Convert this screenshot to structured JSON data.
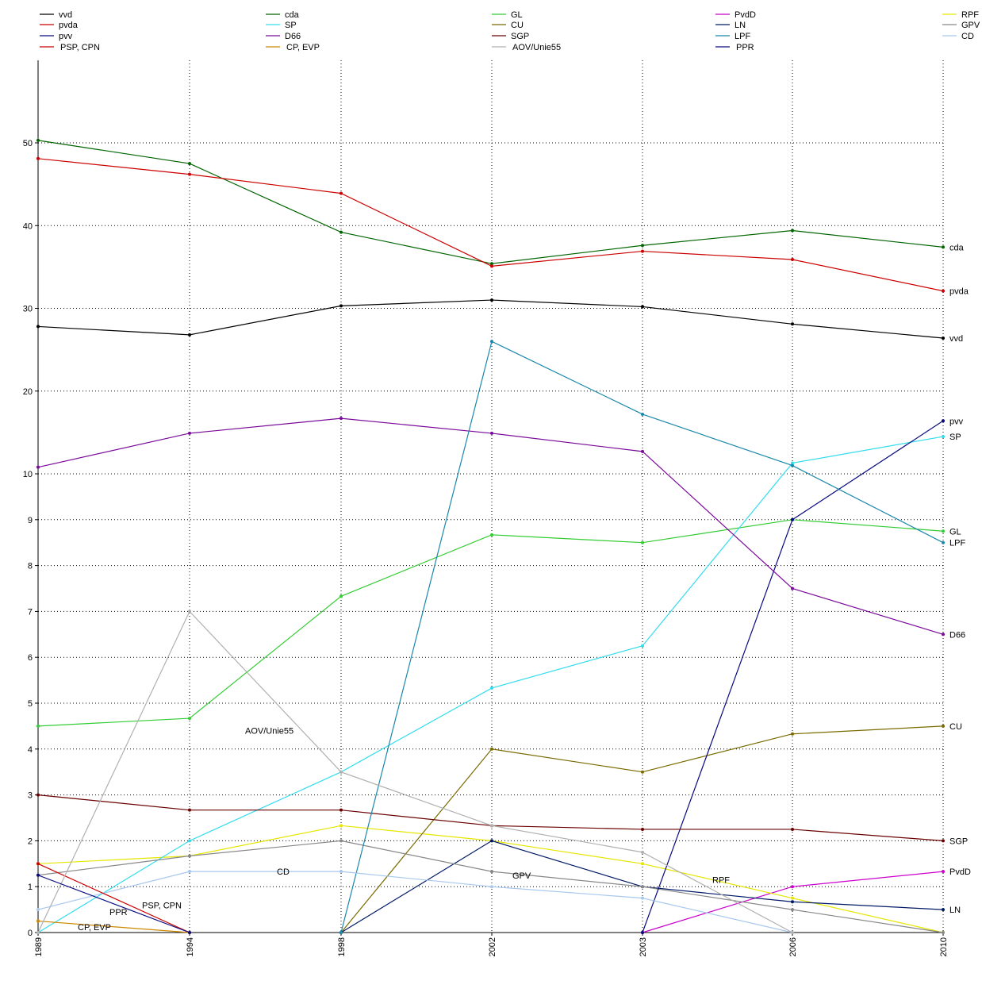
{
  "chart_data": {
    "type": "line",
    "title": "",
    "xlabel": "",
    "ylabel": "",
    "x": [
      "1989",
      "1994",
      "1998",
      "2002",
      "2003",
      "2006",
      "2010"
    ],
    "y_ticks": [
      "1",
      "2",
      "3",
      "4",
      "5",
      "6",
      "7",
      "8",
      "9",
      "10",
      "20",
      "30",
      "40",
      "50"
    ],
    "y_zero_label": "0",
    "y_scale": "piecewise: linear 0-10 in the lower half, compressed linear 10-50 in the upper part",
    "ylim": [
      0,
      60
    ],
    "grid": true,
    "legend_position": "top",
    "legend": [
      "vvd",
      "cda",
      "GL",
      "PvdD",
      "RPF",
      "pvda",
      "SP",
      "CU",
      "LN",
      "GPV",
      "pvv",
      "D66",
      "SGP",
      "LPF",
      "CD",
      "PSP, CPN",
      "CP, EVP",
      "AOV/Unie55",
      "PPR"
    ],
    "series": [
      {
        "name": "vvd",
        "color": "#000000",
        "values": [
          27.8,
          26.8,
          30.3,
          31.0,
          30.2,
          28.1,
          26.4
        ],
        "end_label": "vvd"
      },
      {
        "name": "cda",
        "color": "#006400",
        "values": [
          50.3,
          47.5,
          39.2,
          35.4,
          37.6,
          39.4,
          37.4
        ],
        "end_label": "cda"
      },
      {
        "name": "GL",
        "color": "#33cc33",
        "values": [
          4.5,
          4.67,
          7.33,
          8.67,
          8.5,
          9.0,
          8.75
        ],
        "end_label": "GL"
      },
      {
        "name": "PvdD",
        "color": "#cc00cc",
        "values": [
          null,
          null,
          null,
          null,
          0,
          1.0,
          1.33
        ],
        "end_label": "PvdD"
      },
      {
        "name": "RPF",
        "color": "#e6e600",
        "values": [
          1.5,
          1.67,
          2.33,
          2.0,
          1.5,
          0.75,
          0
        ],
        "end_label": null,
        "mid_label": "RPF",
        "mid_label_x": "2003",
        "mid_label_y": 1.15
      },
      {
        "name": "pvda",
        "color": "#cc0000",
        "values": [
          48.1,
          46.2,
          43.9,
          35.1,
          36.9,
          35.9,
          32.1
        ],
        "end_label": "pvda"
      },
      {
        "name": "SP",
        "color": "#33ddee",
        "values": [
          0,
          2.0,
          3.5,
          5.33,
          6.25,
          11.3,
          14.5
        ],
        "end_label": "SP"
      },
      {
        "name": "CU",
        "color": "#7a6a00",
        "values": [
          null,
          null,
          0,
          4.0,
          3.5,
          4.33,
          4.5
        ],
        "end_label": "CU"
      },
      {
        "name": "LN",
        "color": "#001a66",
        "values": [
          null,
          null,
          0,
          2.0,
          1.0,
          0.67,
          0.5
        ],
        "end_label": "LN"
      },
      {
        "name": "GPV",
        "color": "#888888",
        "values": [
          1.25,
          1.67,
          2.0,
          1.33,
          1.0,
          0.5,
          0
        ],
        "end_label": null,
        "mid_label": "GPV",
        "mid_label_x": "2002",
        "mid_label_y": 1.25
      },
      {
        "name": "pvv",
        "color": "#0a0a80",
        "values": [
          null,
          null,
          null,
          null,
          0,
          9.0,
          16.4
        ],
        "end_label": "pvv"
      },
      {
        "name": "D66",
        "color": "#7a0a9a",
        "values": [
          10.8,
          14.9,
          16.7,
          14.9,
          12.7,
          7.5,
          6.5
        ],
        "end_label": "D66"
      },
      {
        "name": "SGP",
        "color": "#6a0000",
        "values": [
          3.0,
          2.67,
          2.67,
          2.33,
          2.25,
          2.25,
          2.0
        ],
        "end_label": "SGP"
      },
      {
        "name": "LPF",
        "color": "#1a88aa",
        "values": [
          null,
          null,
          0,
          26.0,
          17.2,
          11.0,
          8.5
        ],
        "end_label": "LPF"
      },
      {
        "name": "CD",
        "color": "#a8c8ee",
        "values": [
          0.5,
          1.33,
          1.33,
          1.0,
          0.75,
          0,
          null
        ],
        "end_label": null,
        "mid_label": "CD",
        "mid_label_x": "1994",
        "mid_label_y": 1.33
      },
      {
        "name": "PSP, CPN",
        "color": "#cc0000",
        "values": [
          1.5,
          0,
          null,
          null,
          null,
          null,
          null
        ],
        "end_label": null,
        "mid_label": "PSP, CPN",
        "mid_label_x": "1994",
        "mid_label_y": 0.6
      },
      {
        "name": "CP, EVP",
        "color": "#cc8800",
        "values": [
          0.25,
          0,
          null,
          null,
          null,
          null,
          null
        ],
        "end_label": null,
        "mid_label": "CP, EVP",
        "mid_label_x": "1989",
        "mid_label_y": 0.12
      },
      {
        "name": "AOV/Unie55",
        "color": "#b0b0b0",
        "values": [
          0,
          7.0,
          3.5,
          2.33,
          1.75,
          0,
          null
        ],
        "end_label": null,
        "mid_label": "AOV/Unie55",
        "mid_label_x": "1994",
        "mid_label_y": 4.4
      },
      {
        "name": "PPR",
        "color": "#0a0a80",
        "values": [
          1.25,
          0,
          null,
          null,
          null,
          null,
          null
        ],
        "end_label": null,
        "mid_label": "PPR",
        "mid_label_x": "1989",
        "mid_label_y": 0.45
      }
    ]
  }
}
